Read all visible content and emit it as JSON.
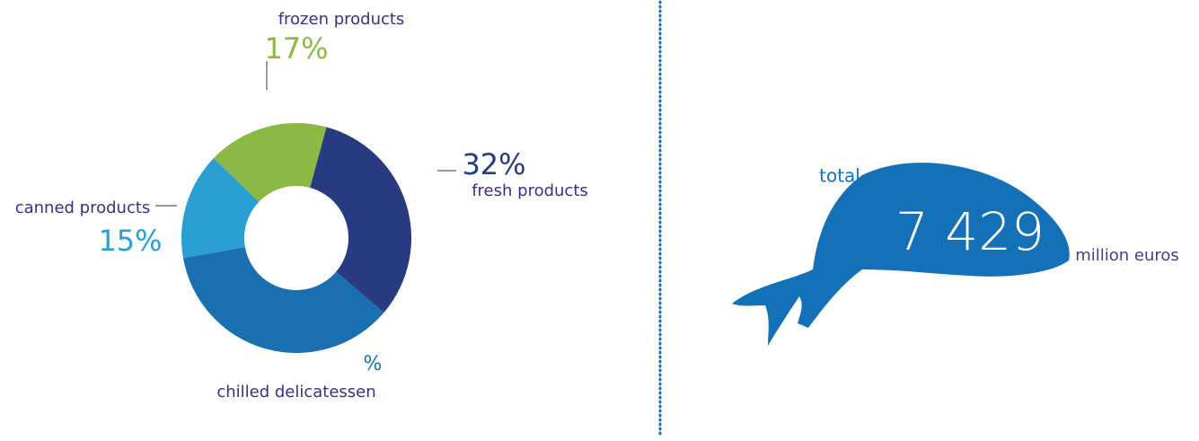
{
  "chart_data": {
    "type": "pie",
    "categories": [
      "frozen products",
      "fresh products",
      "chilled delicatessen",
      "canned products"
    ],
    "values": [
      17,
      32,
      36,
      15
    ],
    "value_labels": [
      "17%",
      "32%",
      "%",
      "15%"
    ],
    "colors": [
      "#8aba45",
      "#283a80",
      "#1a6fb0",
      "#2b9fd3"
    ]
  },
  "total": {
    "label": "total",
    "amount": {
      "value": 7429,
      "label": "7 429"
    },
    "unit": "million euros"
  }
}
